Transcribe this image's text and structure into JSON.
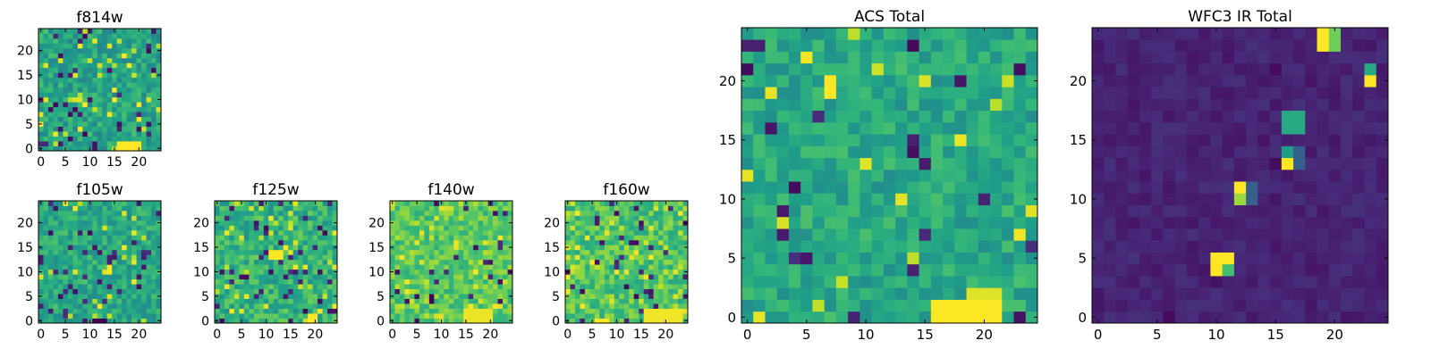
{
  "colormap": {
    "name": "viridis",
    "stops": [
      "#440154",
      "#482878",
      "#3e4989",
      "#31688e",
      "#26828e",
      "#1f9e89",
      "#35b779",
      "#6ece58",
      "#b5de2b",
      "#fde725"
    ]
  },
  "chart_data": [
    {
      "type": "heatmap",
      "id": "f814w",
      "title": "f814w",
      "grid": [
        25,
        25
      ],
      "xlim": [
        0,
        24
      ],
      "ylim": [
        0,
        24
      ],
      "xticks": [
        0,
        5,
        10,
        15,
        20
      ],
      "yticks": [
        0,
        5,
        10,
        15,
        20
      ],
      "profile": {
        "base": 0.58,
        "spread": 0.13,
        "low_frac": 0.07,
        "high_frac": 0.06,
        "seed": 11
      },
      "hotspots": [
        {
          "x": 16,
          "y": 0,
          "w": 5,
          "h": 2,
          "value": 1.0
        }
      ]
    },
    {
      "type": "heatmap",
      "id": "f105w",
      "title": "f105w",
      "grid": [
        25,
        25
      ],
      "xlim": [
        0,
        24
      ],
      "ylim": [
        0,
        24
      ],
      "xticks": [
        0,
        5,
        10,
        15,
        20
      ],
      "yticks": [
        0,
        5,
        10,
        15,
        20
      ],
      "profile": {
        "base": 0.6,
        "spread": 0.12,
        "low_frac": 0.05,
        "high_frac": 0.05,
        "seed": 23
      },
      "hotspots": [
        {
          "x": 11,
          "y": 0,
          "w": 3,
          "h": 1,
          "value": 0.0
        },
        {
          "x": 14,
          "y": 10,
          "w": 1,
          "h": 2,
          "value": 1.0
        }
      ]
    },
    {
      "type": "heatmap",
      "id": "f125w",
      "title": "f125w",
      "grid": [
        25,
        25
      ],
      "xlim": [
        0,
        24
      ],
      "ylim": [
        0,
        24
      ],
      "xticks": [
        0,
        5,
        10,
        15,
        20
      ],
      "yticks": [
        0,
        5,
        10,
        15,
        20
      ],
      "profile": {
        "base": 0.64,
        "spread": 0.14,
        "low_frac": 0.06,
        "high_frac": 0.06,
        "seed": 37
      },
      "hotspots": [
        {
          "x": 11,
          "y": 13,
          "w": 3,
          "h": 2,
          "value": 1.0
        },
        {
          "x": 19,
          "y": 0,
          "w": 2,
          "h": 2,
          "value": 1.0
        }
      ]
    },
    {
      "type": "heatmap",
      "id": "f140w",
      "title": "f140w",
      "grid": [
        25,
        25
      ],
      "xlim": [
        0,
        24
      ],
      "ylim": [
        0,
        24
      ],
      "xticks": [
        0,
        5,
        10,
        15,
        20
      ],
      "yticks": [
        0,
        5,
        10,
        15,
        20
      ],
      "profile": {
        "base": 0.74,
        "spread": 0.12,
        "low_frac": 0.05,
        "high_frac": 0.08,
        "seed": 53
      },
      "hotspots": [
        {
          "x": 15,
          "y": 0,
          "w": 6,
          "h": 3,
          "value": 0.97
        },
        {
          "x": 8,
          "y": 4,
          "w": 1,
          "h": 2,
          "value": 0.0
        }
      ]
    },
    {
      "type": "heatmap",
      "id": "f160w",
      "title": "f160w",
      "grid": [
        25,
        25
      ],
      "xlim": [
        0,
        24
      ],
      "ylim": [
        0,
        24
      ],
      "xticks": [
        0,
        5,
        10,
        15,
        20
      ],
      "yticks": [
        0,
        5,
        10,
        15,
        20
      ],
      "profile": {
        "base": 0.72,
        "spread": 0.13,
        "low_frac": 0.05,
        "high_frac": 0.08,
        "seed": 67
      },
      "hotspots": [
        {
          "x": 16,
          "y": 0,
          "w": 8,
          "h": 3,
          "value": 0.98
        },
        {
          "x": 6,
          "y": 0,
          "w": 3,
          "h": 1,
          "value": 1.0
        }
      ]
    },
    {
      "type": "heatmap",
      "id": "acs_total",
      "title": "ACS Total",
      "grid": [
        25,
        25
      ],
      "xlim": [
        0,
        24
      ],
      "ylim": [
        0,
        24
      ],
      "xticks": [
        0,
        5,
        10,
        15,
        20
      ],
      "yticks": [
        0,
        5,
        10,
        15,
        20
      ],
      "profile": {
        "base": 0.6,
        "spread": 0.11,
        "low_frac": 0.04,
        "high_frac": 0.04,
        "seed": 89
      },
      "hotspots": [
        {
          "x": 16,
          "y": 0,
          "w": 6,
          "h": 2,
          "value": 1.0
        },
        {
          "x": 19,
          "y": 2,
          "w": 3,
          "h": 1,
          "value": 0.95
        },
        {
          "x": 7,
          "y": 19,
          "w": 1,
          "h": 2,
          "value": 1.0
        }
      ]
    },
    {
      "type": "heatmap",
      "id": "wfc3_ir_total",
      "title": "WFC3 IR Total",
      "grid": [
        25,
        25
      ],
      "xlim": [
        0,
        24
      ],
      "ylim": [
        0,
        24
      ],
      "xticks": [
        0,
        5,
        10,
        15,
        20
      ],
      "yticks": [
        0,
        5,
        10,
        15,
        20
      ],
      "profile": {
        "base": 0.1,
        "spread": 0.04,
        "low_frac": 0.04,
        "high_frac": 0.0,
        "seed": 101
      },
      "hotspots": [
        {
          "x": 19,
          "y": 23,
          "w": 1,
          "h": 2,
          "value": 1.0
        },
        {
          "x": 20,
          "y": 23,
          "w": 1,
          "h": 2,
          "value": 0.78
        },
        {
          "x": 23,
          "y": 21,
          "w": 1,
          "h": 1,
          "value": 0.6
        },
        {
          "x": 23,
          "y": 20,
          "w": 1,
          "h": 1,
          "value": 1.0
        },
        {
          "x": 16,
          "y": 16,
          "w": 2,
          "h": 2,
          "value": 0.6
        },
        {
          "x": 16,
          "y": 13,
          "w": 1,
          "h": 1,
          "value": 1.0
        },
        {
          "x": 16,
          "y": 14,
          "w": 1,
          "h": 1,
          "value": 0.55
        },
        {
          "x": 17,
          "y": 13,
          "w": 1,
          "h": 2,
          "value": 0.3
        },
        {
          "x": 12,
          "y": 11,
          "w": 1,
          "h": 1,
          "value": 1.0
        },
        {
          "x": 12,
          "y": 10,
          "w": 1,
          "h": 1,
          "value": 0.85
        },
        {
          "x": 13,
          "y": 10,
          "w": 1,
          "h": 2,
          "value": 0.3
        },
        {
          "x": 10,
          "y": 4,
          "w": 2,
          "h": 2,
          "value": 1.0
        },
        {
          "x": 11,
          "y": 4,
          "w": 1,
          "h": 1,
          "value": 0.7
        },
        {
          "x": 10,
          "y": 3,
          "w": 1,
          "h": 1,
          "value": 0.05
        }
      ]
    }
  ]
}
